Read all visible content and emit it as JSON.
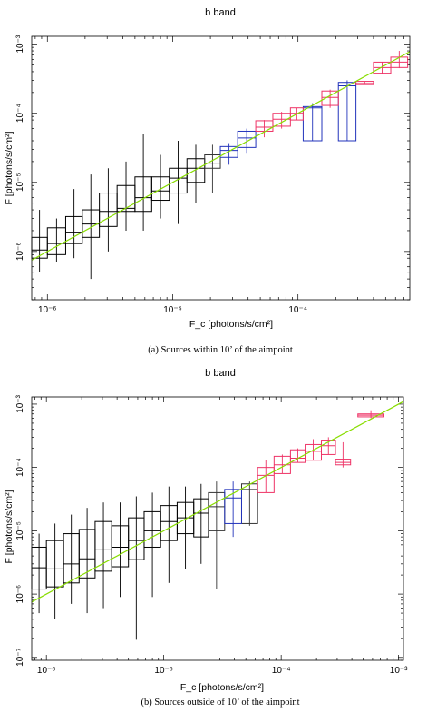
{
  "chart_data": [
    {
      "type": "line",
      "title": "b band",
      "xlabel": "F_c [photons/s/cm²]",
      "ylabel": "F [photons/s/cm²]",
      "caption": "(a)  Sources within 10’ of the aimpoint",
      "xscale": "log",
      "yscale": "log",
      "xlim": [
        7.5e-07,
        0.00078
      ],
      "ylim": [
        2e-07,
        0.0013
      ],
      "xticks": [
        {
          "v": 1e-06,
          "label": "10⁻⁶"
        },
        {
          "v": 1e-05,
          "label": "10⁻⁵"
        },
        {
          "v": 0.0001,
          "label": "10⁻⁴"
        }
      ],
      "yticks": [
        {
          "v": 1e-06,
          "label": "10⁻⁶"
        },
        {
          "v": 1e-05,
          "label": "10⁻⁵"
        },
        {
          "v": 0.0001,
          "label": "10⁻⁴"
        },
        {
          "v": 0.001,
          "label": "10⁻³"
        }
      ],
      "line": {
        "x": [
          7.5e-07,
          0.00078
        ],
        "y": [
          7.5e-07,
          0.00078
        ],
        "color": "#88dd00"
      },
      "series": [
        {
          "color": "#000000",
          "bins": [
            {
              "x0": 7.5e-07,
              "x1": 1e-06,
              "y0": 8e-07,
              "y1": 1.6e-06,
              "med": 1.05e-06,
              "el": 5e-07,
              "eh": 4e-06
            },
            {
              "x0": 1e-06,
              "x1": 1.4e-06,
              "y0": 9e-07,
              "y1": 2.2e-06,
              "med": 1.3e-06,
              "el": 7e-07,
              "eh": 3e-06
            },
            {
              "x0": 1.4e-06,
              "x1": 1.9e-06,
              "y0": 1.3e-06,
              "y1": 3.2e-06,
              "med": 1.9e-06,
              "el": 8e-07,
              "eh": 8e-06
            },
            {
              "x0": 1.9e-06,
              "x1": 2.6e-06,
              "y0": 1.6e-06,
              "y1": 4e-06,
              "med": 2.5e-06,
              "el": 4e-07,
              "eh": 1.3e-05
            },
            {
              "x0": 2.6e-06,
              "x1": 3.6e-06,
              "y0": 2.3e-06,
              "y1": 7e-06,
              "med": 3.8e-06,
              "el": 1e-06,
              "eh": 1.6e-05
            },
            {
              "x0": 3.6e-06,
              "x1": 5e-06,
              "y0": 3.8e-06,
              "y1": 9e-06,
              "med": 4.2e-06,
              "el": 2e-06,
              "eh": 2e-05
            },
            {
              "x0": 5e-06,
              "x1": 6.8e-06,
              "y0": 3.8e-06,
              "y1": 1.2e-05,
              "med": 6e-06,
              "el": 2e-06,
              "eh": 5e-05
            },
            {
              "x0": 6.8e-06,
              "x1": 9.4e-06,
              "y0": 5.5e-06,
              "y1": 1.2e-05,
              "med": 7.5e-06,
              "el": 3e-06,
              "eh": 2.5e-05
            },
            {
              "x0": 9.4e-06,
              "x1": 1.3e-05,
              "y0": 7e-06,
              "y1": 1.6e-05,
              "med": 1.15e-05,
              "el": 2.5e-06,
              "eh": 4e-05
            },
            {
              "x0": 1.3e-05,
              "x1": 1.8e-05,
              "y0": 1e-05,
              "y1": 2.2e-05,
              "med": 1.6e-05,
              "el": 5e-06,
              "eh": 3.5e-05
            }
          ]
        },
        {
          "color": "#333333",
          "bins": [
            {
              "x0": 1.8e-05,
              "x1": 2.4e-05,
              "y0": 1.6e-05,
              "y1": 2.5e-05,
              "med": 1.9e-05,
              "el": 7e-06,
              "eh": 3.5e-05
            }
          ]
        },
        {
          "color": "#2233bb",
          "bins": [
            {
              "x0": 2.4e-05,
              "x1": 3.3e-05,
              "y0": 2.3e-05,
              "y1": 3.3e-05,
              "med": 2.9e-05,
              "el": 1.8e-05,
              "eh": 3.7e-05
            },
            {
              "x0": 3.3e-05,
              "x1": 4.6e-05,
              "y0": 3.2e-05,
              "y1": 5.5e-05,
              "med": 4.4e-05,
              "el": 2.6e-05,
              "eh": 6e-05
            },
            {
              "x0": 0.00011,
              "x1": 0.000155,
              "y0": 4e-05,
              "y1": 0.000125,
              "med": 0.00012,
              "el": 4e-05,
              "eh": 0.00014
            },
            {
              "x0": 0.00021,
              "x1": 0.00029,
              "y0": 4e-05,
              "y1": 0.00028,
              "med": 0.00025,
              "el": 4e-05,
              "eh": 0.0003
            }
          ]
        },
        {
          "color": "#ee3366",
          "bins": [
            {
              "x0": 4.6e-05,
              "x1": 6.3e-05,
              "y0": 5.5e-05,
              "y1": 7.8e-05,
              "med": 6.3e-05,
              "el": 4.5e-05,
              "eh": 8e-05
            },
            {
              "x0": 6.3e-05,
              "x1": 8.7e-05,
              "y0": 6.5e-05,
              "y1": 0.0001,
              "med": 8.2e-05,
              "el": 6e-05,
              "eh": 0.000105
            },
            {
              "x0": 8.7e-05,
              "x1": 0.00011,
              "y0": 8e-05,
              "y1": 0.00012,
              "med": 0.0001,
              "el": 8e-05,
              "eh": 0.00012
            },
            {
              "x0": 0.000155,
              "x1": 0.00021,
              "y0": 0.00013,
              "y1": 0.00021,
              "med": 0.00017,
              "el": 0.00012,
              "eh": 0.00022
            },
            {
              "x0": 0.00029,
              "x1": 0.0004,
              "y0": 0.00026,
              "y1": 0.00029,
              "med": 0.00027,
              "el": 0.00026,
              "eh": 0.00029
            },
            {
              "x0": 0.0004,
              "x1": 0.00055,
              "y0": 0.00038,
              "y1": 0.00055,
              "med": 0.00046,
              "el": 0.00037,
              "eh": 0.00055
            },
            {
              "x0": 0.00055,
              "x1": 0.00075,
              "y0": 0.00046,
              "y1": 0.00065,
              "med": 0.00055,
              "el": 0.00045,
              "eh": 0.0008
            }
          ]
        }
      ]
    },
    {
      "type": "line",
      "title": "b band",
      "xlabel": "F_c [photons/s/cm²]",
      "ylabel": "F [photons/s/cm²]",
      "caption": "(b)  Sources outside of 10’ of the aimpoint",
      "xscale": "log",
      "yscale": "log",
      "xlim": [
        7.5e-07,
        0.0011
      ],
      "ylim": [
        9e-08,
        0.0013
      ],
      "xticks": [
        {
          "v": 1e-06,
          "label": "10⁻⁶"
        },
        {
          "v": 1e-05,
          "label": "10⁻⁵"
        },
        {
          "v": 0.0001,
          "label": "10⁻⁴"
        },
        {
          "v": 0.001,
          "label": "10⁻³"
        }
      ],
      "yticks": [
        {
          "v": 1e-07,
          "label": "10⁻⁷"
        },
        {
          "v": 1e-06,
          "label": "10⁻⁶"
        },
        {
          "v": 1e-05,
          "label": "10⁻⁵"
        },
        {
          "v": 0.0001,
          "label": "10⁻⁴"
        },
        {
          "v": 0.001,
          "label": "10⁻³"
        }
      ],
      "line": {
        "x": [
          7.5e-07,
          0.0011
        ],
        "y": [
          7.5e-07,
          0.0011
        ],
        "color": "#88dd00"
      },
      "series": [
        {
          "color": "#000000",
          "bins": [
            {
              "x0": 7.5e-07,
              "x1": 1e-06,
              "y0": 1.2e-06,
              "y1": 5.5e-06,
              "med": 2.6e-06,
              "el": 5e-07,
              "eh": 9e-06
            },
            {
              "x0": 1e-06,
              "x1": 1.4e-06,
              "y0": 1.3e-06,
              "y1": 7e-06,
              "med": 2.5e-06,
              "el": 4e-07,
              "eh": 1.3e-05
            },
            {
              "x0": 1.4e-06,
              "x1": 1.9e-06,
              "y0": 1.5e-06,
              "y1": 9e-06,
              "med": 3e-06,
              "el": 7e-07,
              "eh": 1.8e-05
            },
            {
              "x0": 1.9e-06,
              "x1": 2.6e-06,
              "y0": 1.8e-06,
              "y1": 1.05e-05,
              "med": 3.6e-06,
              "el": 5e-07,
              "eh": 2.3e-05
            },
            {
              "x0": 2.6e-06,
              "x1": 3.6e-06,
              "y0": 2.3e-06,
              "y1": 1.4e-05,
              "med": 5e-06,
              "el": 6e-07,
              "eh": 2.8e-05
            },
            {
              "x0": 3.6e-06,
              "x1": 5e-06,
              "y0": 2.7e-06,
              "y1": 1.2e-05,
              "med": 5.5e-06,
              "el": 9e-07,
              "eh": 2.8e-05
            },
            {
              "x0": 5e-06,
              "x1": 6.8e-06,
              "y0": 3.5e-06,
              "y1": 1.6e-05,
              "med": 7e-06,
              "el": 1.9e-07,
              "eh": 3.5e-05
            },
            {
              "x0": 6.8e-06,
              "x1": 9.4e-06,
              "y0": 5.5e-06,
              "y1": 2e-05,
              "med": 1e-05,
              "el": 9e-07,
              "eh": 4e-05
            },
            {
              "x0": 9.4e-06,
              "x1": 1.3e-05,
              "y0": 7e-06,
              "y1": 2.5e-05,
              "med": 1.4e-05,
              "el": 1.5e-06,
              "eh": 5e-05
            },
            {
              "x0": 1.3e-05,
              "x1": 1.8e-05,
              "y0": 9e-06,
              "y1": 2.8e-05,
              "med": 1.6e-05,
              "el": 2.5e-06,
              "eh": 5e-05
            },
            {
              "x0": 1.8e-05,
              "x1": 2.4e-05,
              "y0": 8e-06,
              "y1": 3.2e-05,
              "med": 1.9e-05,
              "el": 3e-06,
              "eh": 5.5e-05
            }
          ]
        },
        {
          "color": "#333333",
          "bins": [
            {
              "x0": 2.4e-05,
              "x1": 3.3e-05,
              "y0": 1e-05,
              "y1": 4e-05,
              "med": 2.4e-05,
              "el": 1.2e-06,
              "eh": 6e-05
            },
            {
              "x0": 4.6e-05,
              "x1": 6.3e-05,
              "y0": 1.3e-05,
              "y1": 5.5e-05,
              "med": 4.5e-05,
              "el": 1.2e-05,
              "eh": 6e-05
            }
          ]
        },
        {
          "color": "#2233bb",
          "bins": [
            {
              "x0": 3.3e-05,
              "x1": 4.6e-05,
              "y0": 1.3e-05,
              "y1": 4.5e-05,
              "med": 3.3e-05,
              "el": 8e-06,
              "eh": 6e-05
            }
          ]
        },
        {
          "color": "#ee3366",
          "bins": [
            {
              "x0": 6.3e-05,
              "x1": 8.7e-05,
              "y0": 4e-05,
              "y1": 0.0001,
              "med": 7.5e-05,
              "el": 4e-05,
              "eh": 0.00013
            },
            {
              "x0": 8.7e-05,
              "x1": 0.00012,
              "y0": 8e-05,
              "y1": 0.00015,
              "med": 0.00011,
              "el": 8e-05,
              "eh": 0.00016
            },
            {
              "x0": 0.00012,
              "x1": 0.00016,
              "y0": 0.00012,
              "y1": 0.00019,
              "med": 0.00014,
              "el": 0.00012,
              "eh": 0.0002
            },
            {
              "x0": 0.00016,
              "x1": 0.00022,
              "y0": 0.00013,
              "y1": 0.00023,
              "med": 0.00018,
              "el": 0.00013,
              "eh": 0.00028
            },
            {
              "x0": 0.00022,
              "x1": 0.00029,
              "y0": 0.00016,
              "y1": 0.00027,
              "med": 0.00022,
              "el": 0.00016,
              "eh": 0.0003
            },
            {
              "x0": 0.00029,
              "x1": 0.00039,
              "y0": 0.00011,
              "y1": 0.000135,
              "med": 0.00012,
              "el": 0.0001,
              "eh": 0.00025
            },
            {
              "x0": 0.00045,
              "x1": 0.00075,
              "y0": 0.00063,
              "y1": 0.0007,
              "med": 0.00067,
              "el": 0.0006,
              "eh": 0.0008
            }
          ]
        }
      ]
    }
  ]
}
